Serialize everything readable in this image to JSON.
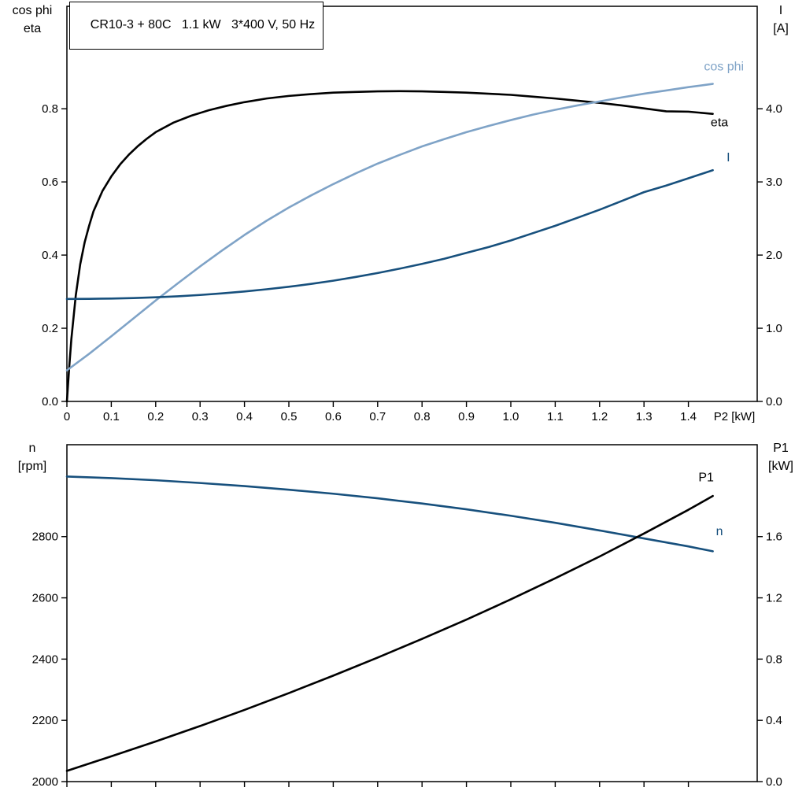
{
  "title_box": {
    "text": "CR10-3 + 80C   1.1 kW   3*400 V, 50 Hz"
  },
  "axis_corner_labels": {
    "upper_left_line1": "cos phi",
    "upper_left_line2": "eta",
    "upper_right_line1": "I",
    "upper_right_line2": "[A]",
    "lower_left_line1": "n",
    "lower_left_line2": "[rpm]",
    "lower_right_line1": "P1",
    "lower_right_line2": "[kW]"
  },
  "colors": {
    "black": "#000000",
    "light_blue": "#7fa3c7",
    "dark_blue": "#17507d",
    "axis": "#000000",
    "background": "#ffffff"
  },
  "chart_data": [
    {
      "type": "line",
      "title": "CR10-3 + 80C   1.1 kW   3*400 V, 50 Hz",
      "x_axis": {
        "label": "P2 [kW]",
        "lim": [
          0,
          1.555
        ],
        "ticks": [
          0,
          0.1,
          0.2,
          0.3,
          0.4,
          0.5,
          0.6,
          0.7,
          0.8,
          0.9,
          1.0,
          1.1,
          1.2,
          1.3,
          1.4
        ],
        "tick_labels": [
          "0",
          "0.1",
          "0.2",
          "0.3",
          "0.4",
          "0.5",
          "0.6",
          "0.7",
          "0.8",
          "0.9",
          "1.0",
          "1.1",
          "1.2",
          "1.3",
          "1.4"
        ],
        "show_tick_labels": true
      },
      "left_axis": {
        "label": "cos phi / eta",
        "lim": [
          0,
          1.08
        ],
        "ticks": [
          0,
          0.2,
          0.4,
          0.6,
          0.8
        ],
        "labels": [
          "0.0",
          "0.2",
          "0.4",
          "0.6",
          "0.8"
        ]
      },
      "right_axis": {
        "label": "I [A]",
        "lim": [
          0,
          5.4
        ],
        "ticks": [
          0,
          1,
          2,
          3,
          4
        ],
        "labels": [
          "0.0",
          "1.0",
          "2.0",
          "3.0",
          "4.0"
        ]
      },
      "series": [
        {
          "name": "eta",
          "axis": "left",
          "color": "#000000",
          "label": {
            "text": "eta",
            "x": 1.47,
            "y": 0.752
          },
          "points": [
            [
              0,
              0
            ],
            [
              0.005,
              0.09
            ],
            [
              0.01,
              0.17
            ],
            [
              0.02,
              0.29
            ],
            [
              0.03,
              0.375
            ],
            [
              0.04,
              0.435
            ],
            [
              0.05,
              0.48
            ],
            [
              0.06,
              0.52
            ],
            [
              0.08,
              0.575
            ],
            [
              0.1,
              0.615
            ],
            [
              0.12,
              0.648
            ],
            [
              0.14,
              0.675
            ],
            [
              0.16,
              0.698
            ],
            [
              0.18,
              0.718
            ],
            [
              0.2,
              0.736
            ],
            [
              0.24,
              0.762
            ],
            [
              0.28,
              0.781
            ],
            [
              0.32,
              0.796
            ],
            [
              0.36,
              0.808
            ],
            [
              0.4,
              0.818
            ],
            [
              0.45,
              0.828
            ],
            [
              0.5,
              0.835
            ],
            [
              0.55,
              0.84
            ],
            [
              0.6,
              0.844
            ],
            [
              0.65,
              0.846
            ],
            [
              0.7,
              0.8475
            ],
            [
              0.75,
              0.848
            ],
            [
              0.8,
              0.8475
            ],
            [
              0.85,
              0.846
            ],
            [
              0.9,
              0.844
            ],
            [
              0.95,
              0.841
            ],
            [
              1.0,
              0.838
            ],
            [
              1.05,
              0.833
            ],
            [
              1.1,
              0.828
            ],
            [
              1.15,
              0.822
            ],
            [
              1.2,
              0.816
            ],
            [
              1.25,
              0.809
            ],
            [
              1.3,
              0.801
            ],
            [
              1.35,
              0.793
            ],
            [
              1.4,
              0.792
            ],
            [
              1.455,
              0.786
            ]
          ]
        },
        {
          "name": "cos_phi",
          "axis": "left",
          "color": "#7fa3c7",
          "label": {
            "text": "cos phi",
            "x": 1.48,
            "y": 0.905
          },
          "points": [
            [
              0,
              0.085
            ],
            [
              0.05,
              0.13
            ],
            [
              0.1,
              0.178
            ],
            [
              0.15,
              0.227
            ],
            [
              0.2,
              0.276
            ],
            [
              0.25,
              0.323
            ],
            [
              0.3,
              0.369
            ],
            [
              0.35,
              0.413
            ],
            [
              0.4,
              0.455
            ],
            [
              0.45,
              0.494
            ],
            [
              0.5,
              0.53
            ],
            [
              0.55,
              0.563
            ],
            [
              0.6,
              0.594
            ],
            [
              0.65,
              0.623
            ],
            [
              0.7,
              0.65
            ],
            [
              0.75,
              0.674
            ],
            [
              0.8,
              0.697
            ],
            [
              0.85,
              0.717
            ],
            [
              0.9,
              0.736
            ],
            [
              0.95,
              0.753
            ],
            [
              1.0,
              0.769
            ],
            [
              1.05,
              0.784
            ],
            [
              1.1,
              0.797
            ],
            [
              1.15,
              0.809
            ],
            [
              1.2,
              0.82
            ],
            [
              1.25,
              0.831
            ],
            [
              1.3,
              0.841
            ],
            [
              1.35,
              0.85
            ],
            [
              1.4,
              0.859
            ],
            [
              1.455,
              0.868
            ]
          ]
        },
        {
          "name": "I",
          "axis": "right",
          "color": "#17507d",
          "label": {
            "text": "I",
            "x": 1.49,
            "y": 3.28
          },
          "points": [
            [
              0,
              1.4
            ],
            [
              0.05,
              1.402
            ],
            [
              0.1,
              1.406
            ],
            [
              0.15,
              1.413
            ],
            [
              0.2,
              1.423
            ],
            [
              0.25,
              1.437
            ],
            [
              0.3,
              1.455
            ],
            [
              0.35,
              1.477
            ],
            [
              0.4,
              1.503
            ],
            [
              0.45,
              1.533
            ],
            [
              0.5,
              1.567
            ],
            [
              0.55,
              1.606
            ],
            [
              0.6,
              1.65
            ],
            [
              0.65,
              1.7
            ],
            [
              0.7,
              1.755
            ],
            [
              0.75,
              1.815
            ],
            [
              0.8,
              1.88
            ],
            [
              0.85,
              1.95
            ],
            [
              0.9,
              2.03
            ],
            [
              0.95,
              2.11
            ],
            [
              1.0,
              2.2
            ],
            [
              1.05,
              2.3
            ],
            [
              1.1,
              2.4
            ],
            [
              1.15,
              2.51
            ],
            [
              1.2,
              2.62
            ],
            [
              1.25,
              2.74
            ],
            [
              1.3,
              2.86
            ],
            [
              1.35,
              2.95
            ],
            [
              1.4,
              3.05
            ],
            [
              1.455,
              3.16
            ]
          ]
        }
      ]
    },
    {
      "type": "line",
      "title": "",
      "x_axis": {
        "label": "",
        "lim": [
          0,
          1.555
        ],
        "ticks": [
          0,
          0.1,
          0.2,
          0.3,
          0.4,
          0.5,
          0.6,
          0.7,
          0.8,
          0.9,
          1.0,
          1.1,
          1.2,
          1.3,
          1.4
        ],
        "tick_labels": [
          "",
          "",
          "",
          "",
          "",
          "",
          "",
          "",
          "",
          "",
          "",
          "",
          "",
          "",
          ""
        ],
        "show_tick_labels": false
      },
      "left_axis": {
        "label": "n [rpm]",
        "lim": [
          2000,
          3100
        ],
        "ticks": [
          2000,
          2200,
          2400,
          2600,
          2800
        ],
        "labels": [
          "2000",
          "2200",
          "2400",
          "2600",
          "2800"
        ]
      },
      "right_axis": {
        "label": "P1 [kW]",
        "lim": [
          0,
          2.2
        ],
        "ticks": [
          0,
          0.4,
          0.8,
          1.2,
          1.6
        ],
        "labels": [
          "0.0",
          "0.4",
          "0.8",
          "1.2",
          "1.6"
        ]
      },
      "series": [
        {
          "name": "n",
          "axis": "left",
          "color": "#17507d",
          "label": {
            "text": "n",
            "x": 1.47,
            "y": 2805
          },
          "points": [
            [
              0,
              2996
            ],
            [
              0.1,
              2991
            ],
            [
              0.2,
              2984
            ],
            [
              0.3,
              2975
            ],
            [
              0.4,
              2965
            ],
            [
              0.5,
              2953
            ],
            [
              0.6,
              2940
            ],
            [
              0.7,
              2925
            ],
            [
              0.8,
              2908
            ],
            [
              0.9,
              2889
            ],
            [
              1.0,
              2868
            ],
            [
              1.1,
              2845
            ],
            [
              1.2,
              2820
            ],
            [
              1.3,
              2794
            ],
            [
              1.4,
              2768
            ],
            [
              1.455,
              2752
            ]
          ]
        },
        {
          "name": "P1",
          "axis": "right",
          "color": "#000000",
          "label": {
            "text": "P1",
            "x": 1.44,
            "y": 1.96
          },
          "points": [
            [
              0,
              0.07
            ],
            [
              0.1,
              0.165
            ],
            [
              0.2,
              0.262
            ],
            [
              0.3,
              0.363
            ],
            [
              0.4,
              0.468
            ],
            [
              0.5,
              0.578
            ],
            [
              0.6,
              0.692
            ],
            [
              0.7,
              0.81
            ],
            [
              0.8,
              0.932
            ],
            [
              0.9,
              1.058
            ],
            [
              1.0,
              1.19
            ],
            [
              1.1,
              1.328
            ],
            [
              1.2,
              1.47
            ],
            [
              1.3,
              1.62
            ],
            [
              1.4,
              1.775
            ],
            [
              1.455,
              1.865
            ]
          ]
        }
      ]
    }
  ]
}
